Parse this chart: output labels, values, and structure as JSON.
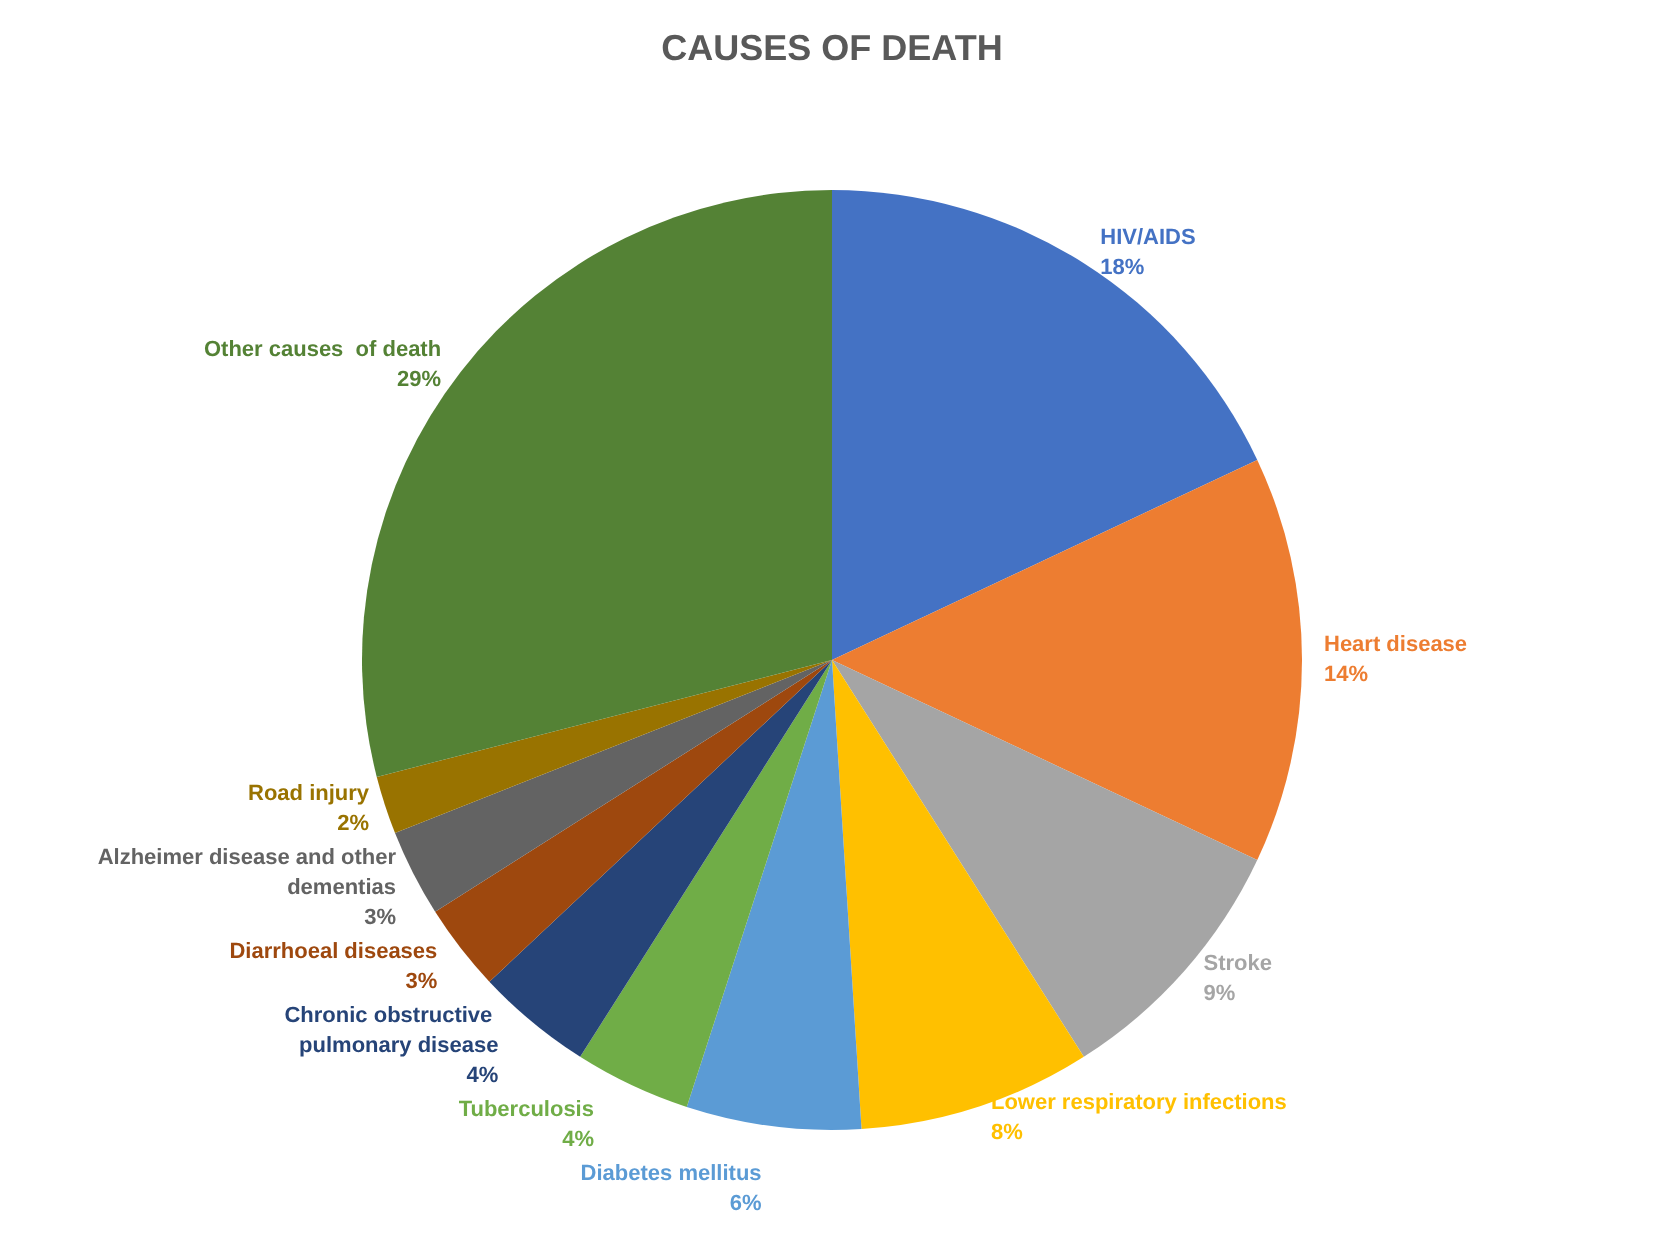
{
  "chart_data": {
    "type": "pie",
    "title": "CAUSES OF DEATH",
    "categories": [
      "HIV/AIDS",
      "Heart disease",
      "Stroke",
      "Lower respiratory infections",
      "Diabetes mellitus",
      "Tuberculosis",
      "Chronic obstructive pulmonary disease",
      "Diarrhoeal diseases",
      "Alzheimer disease and other dementias",
      "Road injury",
      "Other causes  of death"
    ],
    "values": [
      18,
      14,
      9,
      8,
      6,
      4,
      4,
      3,
      3,
      2,
      29
    ],
    "colors": [
      "#4472c4",
      "#ed7d31",
      "#a5a5a5",
      "#ffc000",
      "#5b9bd5",
      "#70ad47",
      "#264478",
      "#9e480e",
      "#636363",
      "#997300",
      "#548235"
    ],
    "value_labels": [
      "18%",
      "14%",
      "9%",
      "8%",
      "6%",
      "4%",
      "4%",
      "3%",
      "3%",
      "2%",
      "29%"
    ],
    "legend": false
  }
}
